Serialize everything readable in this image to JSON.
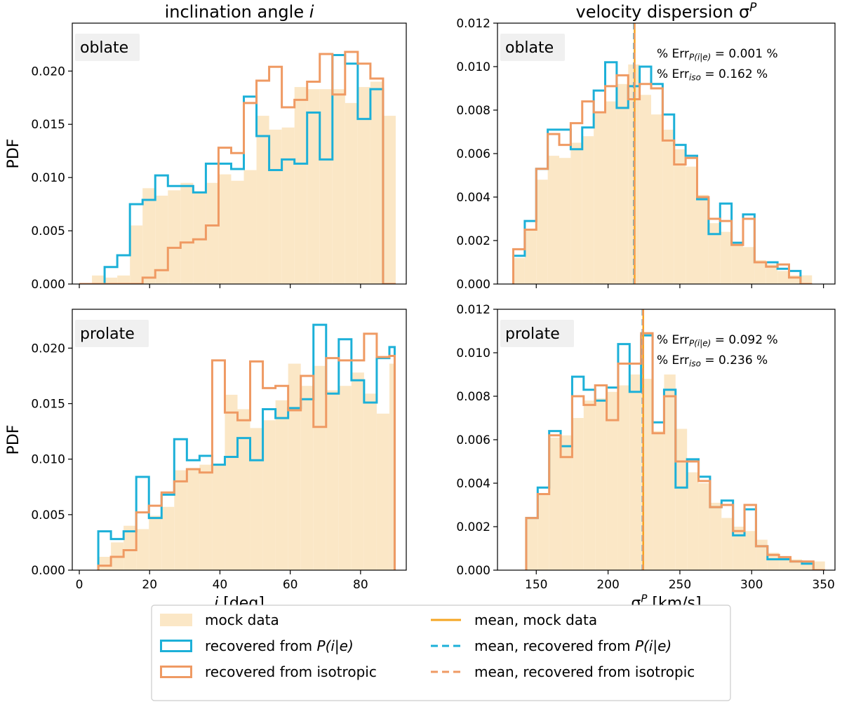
{
  "chart_data": [
    {
      "type": "histogram",
      "column_title": "inclination angle $i$",
      "panel_label": "oblate",
      "ylabel": "PDF",
      "xlabel": "",
      "xlim": [
        -2,
        93
      ],
      "ylim": [
        0,
        0.0245
      ],
      "xticks": [
        0,
        20,
        40,
        60,
        80
      ],
      "yticks": [
        0.0,
        0.005,
        0.01,
        0.015,
        0.02
      ],
      "ytick_labels": [
        "0.000",
        "0.005",
        "0.010",
        "0.015",
        "0.020"
      ],
      "bin_edges": [
        0,
        3.6,
        7.2,
        10.8,
        14.4,
        18,
        21.6,
        25.2,
        28.8,
        32.4,
        36,
        39.6,
        43.2,
        46.8,
        50.4,
        54,
        57.6,
        61.2,
        64.8,
        68.4,
        72,
        75.6,
        79.2,
        82.8,
        86.4,
        90
      ],
      "series": [
        {
          "name": "mock data",
          "style": "filled",
          "color": "#fbe7c6",
          "values": [
            0.0,
            0.0008,
            0.0006,
            0.0008,
            0.0055,
            0.009,
            0.0083,
            0.0088,
            0.0095,
            0.0087,
            0.0095,
            0.0103,
            0.0097,
            0.0107,
            0.0158,
            0.0145,
            0.0147,
            0.0185,
            0.0183,
            0.0183,
            0.0183,
            0.017,
            0.0185,
            0.019,
            0.0158
          ]
        },
        {
          "name": "recovered from $P(i|e)$",
          "style": "step",
          "color": "#1cb0d8",
          "values": [
            0.0,
            0.0,
            0.0016,
            0.0027,
            0.0075,
            0.0079,
            0.0102,
            0.0092,
            0.0092,
            0.0086,
            0.0113,
            0.0113,
            0.0108,
            0.0176,
            0.0139,
            0.0107,
            0.0117,
            0.0113,
            0.0161,
            0.0117,
            0.0215,
            0.0207,
            0.0155,
            0.0183,
            0.0
          ]
        },
        {
          "name": "recovered from isotropic",
          "style": "step",
          "color": "#ef9a63",
          "values": [
            0.0,
            0.0,
            0.0,
            0.0,
            0.0,
            0.0006,
            0.0013,
            0.0034,
            0.0039,
            0.0042,
            0.0055,
            0.0128,
            0.0123,
            0.017,
            0.0191,
            0.0204,
            0.0166,
            0.0173,
            0.019,
            0.0216,
            0.0178,
            0.0218,
            0.0207,
            0.0193,
            0.0
          ]
        }
      ],
      "vlines": []
    },
    {
      "type": "histogram",
      "column_title": "velocity dispersion $\\sigma^P$",
      "panel_label": "oblate",
      "ylabel": "",
      "xlabel": "",
      "xlim": [
        123,
        358
      ],
      "ylim": [
        0,
        0.012
      ],
      "xticks": [
        150,
        200,
        250,
        300,
        350
      ],
      "yticks": [
        0.0,
        0.002,
        0.004,
        0.006,
        0.008,
        0.01,
        0.012
      ],
      "ytick_labels": [
        "0.000",
        "0.002",
        "0.004",
        "0.006",
        "0.008",
        "0.010",
        "0.012"
      ],
      "err_lines": [
        "% Err$_{P(i|e)}$ = 0.001 %",
        "% Err$_{iso}$ = 0.162 %"
      ],
      "bin_edges": [
        134,
        142,
        150,
        158,
        166,
        174,
        182,
        190,
        198,
        206,
        214,
        222,
        230,
        238,
        246,
        254,
        262,
        270,
        278,
        286,
        294,
        302,
        310,
        318,
        326,
        334,
        342
      ],
      "series": [
        {
          "name": "mock data",
          "style": "filled",
          "color": "#fbe7c6",
          "values": [
            0.0012,
            0.0025,
            0.0048,
            0.0059,
            0.0058,
            0.0065,
            0.0068,
            0.0079,
            0.0084,
            0.0092,
            0.0101,
            0.0087,
            0.0078,
            0.0071,
            0.0062,
            0.0054,
            0.0041,
            0.0028,
            0.0024,
            0.0018,
            0.0017,
            0.0011,
            0.0009,
            0.0006,
            0.0004,
            0.0004
          ]
        },
        {
          "name": "recovered from $P(i|e)$",
          "style": "step",
          "color": "#1cb0d8",
          "values": [
            0.0013,
            0.0029,
            0.0053,
            0.0071,
            0.0071,
            0.0062,
            0.0072,
            0.0089,
            0.0102,
            0.0081,
            0.0091,
            0.01,
            0.0092,
            0.0078,
            0.0064,
            0.0059,
            0.0039,
            0.0023,
            0.0037,
            0.0019,
            0.0032,
            0.001,
            0.001,
            0.0007,
            0.0006,
            0.0
          ]
        },
        {
          "name": "recovered from isotropic",
          "style": "step",
          "color": "#ef9a63",
          "values": [
            0.0016,
            0.0025,
            0.0053,
            0.0069,
            0.0064,
            0.0074,
            0.0084,
            0.0079,
            0.0091,
            0.0096,
            0.0085,
            0.0092,
            0.009,
            0.0066,
            0.0055,
            0.0058,
            0.004,
            0.003,
            0.0029,
            0.0018,
            0.003,
            0.001,
            0.0008,
            0.0009,
            0.0003,
            0.0
          ]
        }
      ],
      "vlines": [
        {
          "name": "mean, mock data",
          "x": 218.5,
          "color": "#f5a623",
          "style": "solid"
        },
        {
          "name": "mean, recovered from $P(i|e)$",
          "x": 218.0,
          "color": "#1cb0d8",
          "style": "dashed"
        },
        {
          "name": "mean, recovered from isotropic",
          "x": 218.3,
          "color": "#ef9a63",
          "style": "dashed"
        }
      ]
    },
    {
      "type": "histogram",
      "column_title": "",
      "panel_label": "prolate",
      "ylabel": "PDF",
      "xlabel": "$i$ [deg]",
      "xlim": [
        -2,
        93
      ],
      "ylim": [
        0,
        0.0235
      ],
      "xticks": [
        0,
        20,
        40,
        60,
        80
      ],
      "yticks": [
        0.0,
        0.005,
        0.01,
        0.015,
        0.02
      ],
      "ytick_labels": [
        "0.000",
        "0.005",
        "0.010",
        "0.015",
        "0.020"
      ],
      "bin_edges": [
        5.4,
        9,
        12.6,
        16.2,
        19.8,
        23.4,
        27,
        30.6,
        34.2,
        37.8,
        41.4,
        45,
        48.6,
        52.2,
        55.8,
        59.4,
        63,
        66.6,
        70.2,
        73.8,
        77.4,
        81,
        84.6,
        88.2,
        89.7
      ],
      "series": [
        {
          "name": "mock data",
          "style": "filled",
          "color": "#fbe7c6",
          "values": [
            0.0012,
            0.0025,
            0.004,
            0.0037,
            0.0049,
            0.0057,
            0.009,
            0.0092,
            0.0095,
            0.0096,
            0.0158,
            0.0145,
            0.0128,
            0.0135,
            0.0153,
            0.0186,
            0.0166,
            0.0184,
            0.0162,
            0.0166,
            0.0178,
            0.0159,
            0.0141,
            0.0186
          ]
        },
        {
          "name": "recovered from $P(i|e)$",
          "style": "step",
          "color": "#1cb0d8",
          "values": [
            0.0035,
            0.0028,
            0.0035,
            0.0084,
            0.0047,
            0.0068,
            0.0118,
            0.0099,
            0.0103,
            0.0095,
            0.0102,
            0.0119,
            0.0099,
            0.0145,
            0.0137,
            0.0146,
            0.0154,
            0.0221,
            0.0159,
            0.0208,
            0.0171,
            0.0151,
            0.0191,
            0.0201
          ]
        },
        {
          "name": "recovered from isotropic",
          "style": "step",
          "color": "#ef9a63",
          "values": [
            0.0004,
            0.0012,
            0.0018,
            0.0052,
            0.0058,
            0.007,
            0.008,
            0.0091,
            0.0088,
            0.0189,
            0.0142,
            0.0135,
            0.0188,
            0.0164,
            0.0166,
            0.0144,
            0.0175,
            0.0129,
            0.0191,
            0.0189,
            0.0189,
            0.0213,
            0.0192,
            0.0193
          ]
        }
      ],
      "vlines": []
    },
    {
      "type": "histogram",
      "column_title": "",
      "panel_label": "prolate",
      "ylabel": "",
      "xlabel": "$\\sigma^P$ [km/s]",
      "xlim": [
        123,
        358
      ],
      "ylim": [
        0,
        0.012
      ],
      "xticks": [
        150,
        200,
        250,
        300,
        350
      ],
      "yticks": [
        0.0,
        0.002,
        0.004,
        0.006,
        0.008,
        0.01,
        0.012
      ],
      "ytick_labels": [
        "0.000",
        "0.002",
        "0.004",
        "0.006",
        "0.008",
        "0.010",
        "0.012"
      ],
      "err_lines": [
        "% Err$_{P(i|e)}$ = 0.092 %",
        "% Err$_{iso}$ = 0.236 %"
      ],
      "bin_edges": [
        143,
        151,
        159,
        167,
        175,
        183,
        191,
        199,
        207,
        215,
        223,
        231,
        239,
        247,
        255,
        263,
        271,
        279,
        287,
        295,
        303,
        311,
        319,
        327,
        335,
        343,
        351
      ],
      "series": [
        {
          "name": "mock data",
          "style": "filled",
          "color": "#fbe7c6",
          "values": [
            0.0024,
            0.0035,
            0.0061,
            0.0062,
            0.007,
            0.0078,
            0.0079,
            0.0082,
            0.0085,
            0.009,
            0.0088,
            0.0064,
            0.009,
            0.0065,
            0.0045,
            0.004,
            0.0031,
            0.0024,
            0.002,
            0.0018,
            0.0014,
            0.0008,
            0.0006,
            0.0005,
            0.0004,
            0.0004
          ]
        },
        {
          "name": "recovered from $P(i|e)$",
          "style": "step",
          "color": "#1cb0d8",
          "values": [
            0.0024,
            0.0038,
            0.0064,
            0.0057,
            0.0089,
            0.0083,
            0.0078,
            0.0084,
            0.0104,
            0.0082,
            0.0108,
            0.0068,
            0.0083,
            0.0038,
            0.0051,
            0.0043,
            0.0029,
            0.0032,
            0.0016,
            0.0028,
            0.0011,
            0.0005,
            0.0005,
            0.0004,
            0.0003,
            0.0
          ]
        },
        {
          "name": "recovered from isotropic",
          "style": "step",
          "color": "#ef9a63",
          "values": [
            0.0024,
            0.0035,
            0.0062,
            0.0052,
            0.008,
            0.0076,
            0.0085,
            0.0069,
            0.0095,
            0.0095,
            0.0109,
            0.0063,
            0.008,
            0.005,
            0.005,
            0.0041,
            0.0029,
            0.003,
            0.0018,
            0.003,
            0.0011,
            0.0007,
            0.0006,
            0.0004,
            0.0004,
            0.0
          ]
        }
      ],
      "vlines": [
        {
          "name": "mean, mock data",
          "x": 224.5,
          "color": "#f5a623",
          "style": "solid"
        },
        {
          "name": "mean, recovered from $P(i|e)$",
          "x": 224.0,
          "color": "#1cb0d8",
          "style": "dashed"
        },
        {
          "name": "mean, recovered from isotropic",
          "x": 224.2,
          "color": "#ef9a63",
          "style": "dashed"
        }
      ]
    }
  ],
  "legend": {
    "placement": "bottom-center",
    "columns": [
      [
        {
          "label": "mock data",
          "kind": "filled-patch",
          "color": "#fbe7c6"
        },
        {
          "label": "recovered from $P(i|e)$",
          "kind": "outline-patch",
          "color": "#1cb0d8"
        },
        {
          "label": "recovered from isotropic",
          "kind": "outline-patch",
          "color": "#ef9a63"
        }
      ],
      [
        {
          "label": "mean, mock data",
          "kind": "solid-line",
          "color": "#f5a623"
        },
        {
          "label": "mean, recovered from $P(i|e)$",
          "kind": "dashed-line",
          "color": "#1cb0d8"
        },
        {
          "label": "mean, recovered from isotropic",
          "kind": "dashed-line",
          "color": "#ef9a63"
        }
      ]
    ]
  }
}
